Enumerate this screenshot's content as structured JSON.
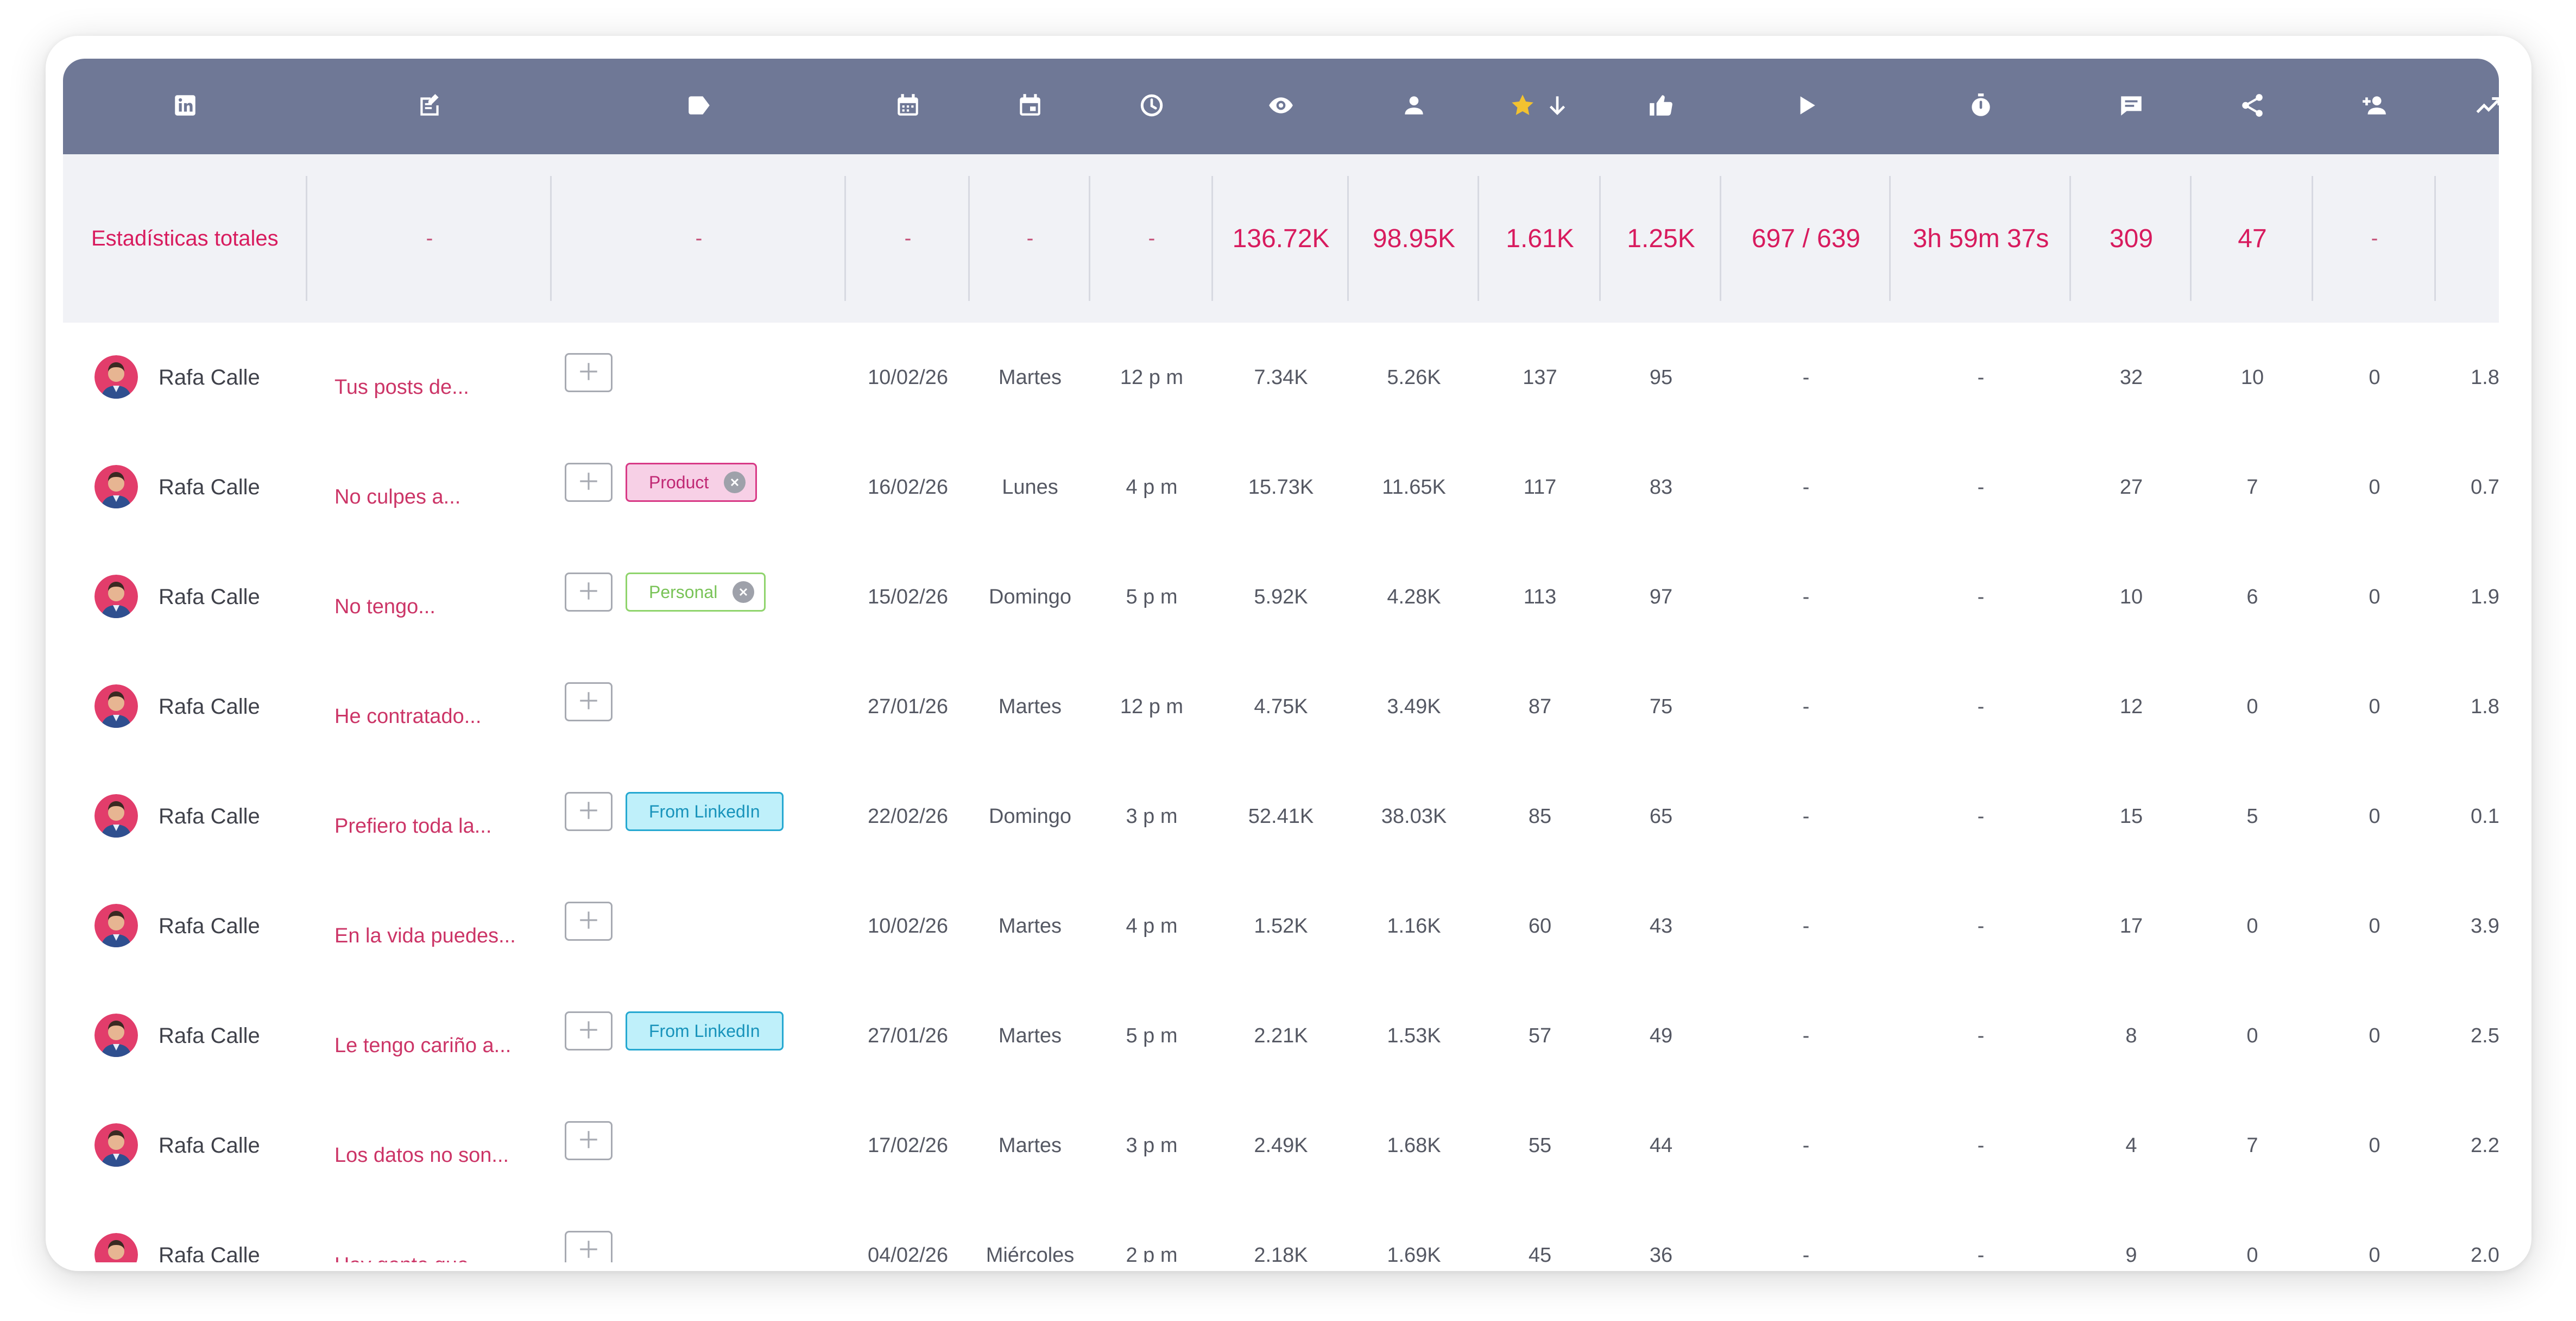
{
  "colors": {
    "header_bg": "#6f7896",
    "header_icon": "#ffffff",
    "star": "#f2c230",
    "totals_bg": "#f1f2f6",
    "totals_text": "#d81b5e",
    "title_text": "#cc3567"
  },
  "header_icons": [
    "linkedin-icon",
    "post-edit-icon",
    "tag-icon",
    "calendar-date-icon",
    "calendar-day-icon",
    "clock-icon",
    "eye-icon",
    "person-icon",
    "star-sort-desc-icon",
    "thumbs-up-icon",
    "play-icon",
    "stopwatch-icon",
    "comment-icon",
    "share-icon",
    "add-person-icon",
    "trend-icon"
  ],
  "totals": {
    "label": "Estadísticas totales",
    "title": "-",
    "tags": "-",
    "date": "-",
    "day": "-",
    "hour": "-",
    "impressions": "136.72K",
    "reach": "98.95K",
    "engagement": "1.61K",
    "reactions": "1.25K",
    "video_views": "697 / 639",
    "watch_time": "3h 59m 37s",
    "comments": "309",
    "shares": "47",
    "followers": "-"
  },
  "rows": [
    {
      "author": "Rafa Calle",
      "title": "Tus posts de...",
      "tag": null,
      "date": "10/02/26",
      "day": "Martes",
      "hour": "12 p m",
      "impressions": "7.34K",
      "reach": "5.26K",
      "engagement": "137",
      "reactions": "95",
      "video_views": "-",
      "watch_time": "-",
      "comments": "32",
      "shares": "10",
      "followers": "0",
      "rate": "1.8"
    },
    {
      "author": "Rafa Calle",
      "title": "No culpes a...",
      "tag": {
        "label": "Product",
        "style": "product",
        "removable": true
      },
      "date": "16/02/26",
      "day": "Lunes",
      "hour": "4 p m",
      "impressions": "15.73K",
      "reach": "11.65K",
      "engagement": "117",
      "reactions": "83",
      "video_views": "-",
      "watch_time": "-",
      "comments": "27",
      "shares": "7",
      "followers": "0",
      "rate": "0.7"
    },
    {
      "author": "Rafa Calle",
      "title": "No tengo...",
      "tag": {
        "label": "Personal",
        "style": "personal",
        "removable": true
      },
      "date": "15/02/26",
      "day": "Domingo",
      "hour": "5 p m",
      "impressions": "5.92K",
      "reach": "4.28K",
      "engagement": "113",
      "reactions": "97",
      "video_views": "-",
      "watch_time": "-",
      "comments": "10",
      "shares": "6",
      "followers": "0",
      "rate": "1.9"
    },
    {
      "author": "Rafa Calle",
      "title": "He contratado...",
      "tag": null,
      "date": "27/01/26",
      "day": "Martes",
      "hour": "12 p m",
      "impressions": "4.75K",
      "reach": "3.49K",
      "engagement": "87",
      "reactions": "75",
      "video_views": "-",
      "watch_time": "-",
      "comments": "12",
      "shares": "0",
      "followers": "0",
      "rate": "1.8"
    },
    {
      "author": "Rafa Calle",
      "title": "Prefiero toda la...",
      "tag": {
        "label": "From LinkedIn",
        "style": "linkedin",
        "removable": false
      },
      "date": "22/02/26",
      "day": "Domingo",
      "hour": "3 p m",
      "impressions": "52.41K",
      "reach": "38.03K",
      "engagement": "85",
      "reactions": "65",
      "video_views": "-",
      "watch_time": "-",
      "comments": "15",
      "shares": "5",
      "followers": "0",
      "rate": "0.1"
    },
    {
      "author": "Rafa Calle",
      "title": "En la vida puedes...",
      "tag": null,
      "date": "10/02/26",
      "day": "Martes",
      "hour": "4 p m",
      "impressions": "1.52K",
      "reach": "1.16K",
      "engagement": "60",
      "reactions": "43",
      "video_views": "-",
      "watch_time": "-",
      "comments": "17",
      "shares": "0",
      "followers": "0",
      "rate": "3.9"
    },
    {
      "author": "Rafa Calle",
      "title": "Le tengo cariño a...",
      "tag": {
        "label": "From LinkedIn",
        "style": "linkedin",
        "removable": false
      },
      "date": "27/01/26",
      "day": "Martes",
      "hour": "5 p m",
      "impressions": "2.21K",
      "reach": "1.53K",
      "engagement": "57",
      "reactions": "49",
      "video_views": "-",
      "watch_time": "-",
      "comments": "8",
      "shares": "0",
      "followers": "0",
      "rate": "2.5"
    },
    {
      "author": "Rafa Calle",
      "title": "Los datos no son...",
      "tag": null,
      "date": "17/02/26",
      "day": "Martes",
      "hour": "3 p m",
      "impressions": "2.49K",
      "reach": "1.68K",
      "engagement": "55",
      "reactions": "44",
      "video_views": "-",
      "watch_time": "-",
      "comments": "4",
      "shares": "7",
      "followers": "0",
      "rate": "2.2"
    },
    {
      "author": "Rafa Calle",
      "title": "Hay gente que...",
      "tag": null,
      "date": "04/02/26",
      "day": "Miércoles",
      "hour": "2 p m",
      "impressions": "2.18K",
      "reach": "1.69K",
      "engagement": "45",
      "reactions": "36",
      "video_views": "-",
      "watch_time": "-",
      "comments": "9",
      "shares": "0",
      "followers": "0",
      "rate": "2.0"
    }
  ]
}
